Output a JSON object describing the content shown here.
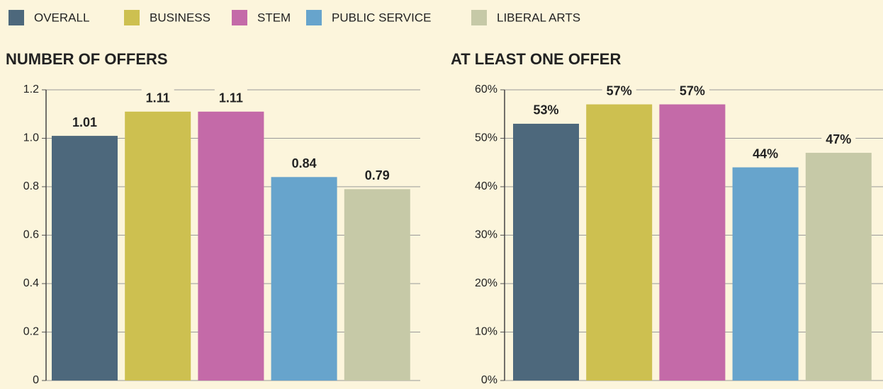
{
  "legend": {
    "items": [
      {
        "name": "OVERALL",
        "color": "#4d687c"
      },
      {
        "name": "BUSINESS",
        "color": "#cdc050"
      },
      {
        "name": "STEM",
        "color": "#c46aa8"
      },
      {
        "name": "PUBLIC SERVICE",
        "color": "#67a4cc"
      },
      {
        "name": "LIBERAL ARTS",
        "color": "#c6c9a7"
      }
    ]
  },
  "chart_data": [
    {
      "type": "bar",
      "title": "NUMBER OF OFFERS",
      "values": [
        1.01,
        1.11,
        1.11,
        0.84,
        0.79
      ],
      "ylim": [
        0,
        1.2
      ],
      "yticks": [
        0,
        0.2,
        0.4,
        0.6,
        0.8,
        {
          "value": 1,
          "label": "1.0"
        },
        1.2
      ],
      "grid": true
    },
    {
      "type": "bar",
      "title": "AT LEAST ONE OFFER",
      "values": [
        53,
        57,
        57,
        44,
        47
      ],
      "value_labels": [
        "53%",
        "57%",
        "57%",
        "44%",
        "47%"
      ],
      "ylim": [
        0,
        60
      ],
      "yticks": [
        {
          "value": 0,
          "label": "0%"
        },
        {
          "value": 10,
          "label": "10%"
        },
        {
          "value": 20,
          "label": "20%"
        },
        {
          "value": 30,
          "label": "30%"
        },
        {
          "value": 40,
          "label": "40%"
        },
        {
          "value": 50,
          "label": "50%"
        },
        {
          "value": 60,
          "label": "60%"
        }
      ],
      "grid": true
    }
  ]
}
